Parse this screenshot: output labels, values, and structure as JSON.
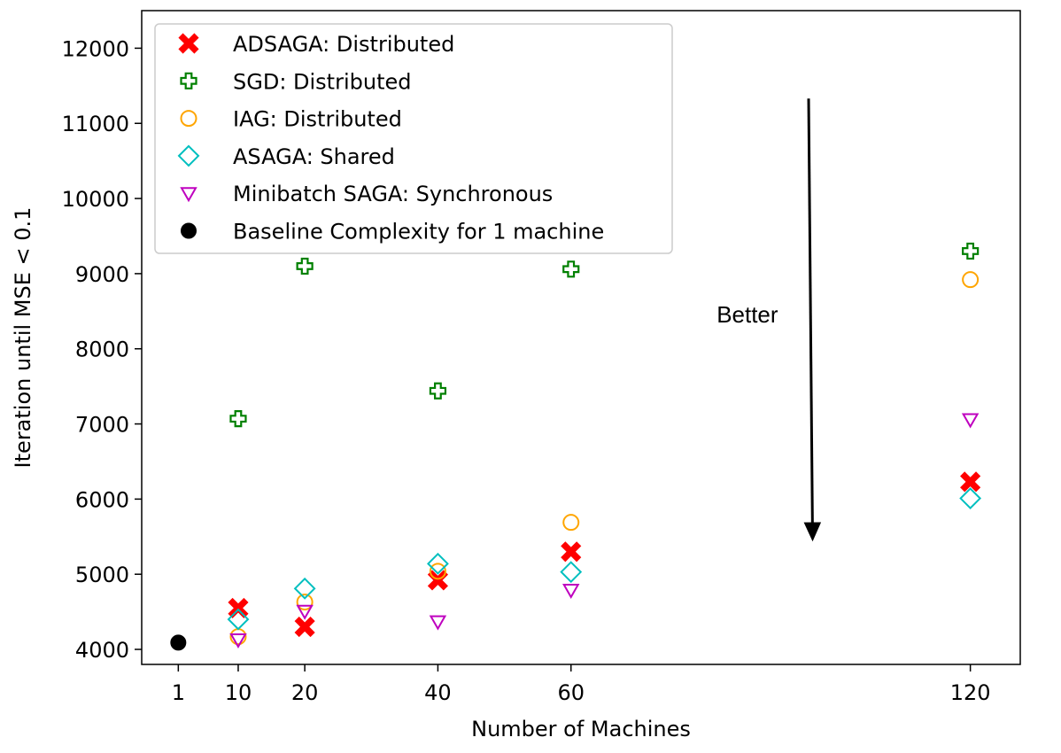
{
  "chart_data": {
    "type": "scatter",
    "title": "",
    "xlabel": "Number of Machines",
    "ylabel": "Iteration until MSE < 0.1",
    "xlim": [
      -4.5,
      127.5
    ],
    "ylim": [
      3800,
      12500
    ],
    "xticks": [
      1,
      10,
      20,
      40,
      60,
      120
    ],
    "yticks": [
      4000,
      5000,
      6000,
      7000,
      8000,
      9000,
      10000,
      11000,
      12000
    ],
    "grid": false,
    "legend_position": "top-left",
    "series": [
      {
        "name": "ADSAGA: Distributed",
        "marker": "filled-x",
        "color": "#ff0000",
        "x": [
          10,
          20,
          40,
          60,
          120
        ],
        "y": [
          4550,
          4300,
          4920,
          5300,
          6230
        ]
      },
      {
        "name": "SGD: Distributed",
        "marker": "plus-outline",
        "color": "#008000",
        "x": [
          10,
          20,
          40,
          60,
          120
        ],
        "y": [
          7070,
          9100,
          7440,
          9060,
          9300
        ]
      },
      {
        "name": "IAG: Distributed",
        "marker": "circle-outline",
        "color": "#ffa500",
        "x": [
          10,
          20,
          40,
          60,
          120
        ],
        "y": [
          4170,
          4630,
          5040,
          5690,
          8920
        ]
      },
      {
        "name": "ASAGA: Shared",
        "marker": "diamond-outline",
        "color": "#00bfbf",
        "x": [
          10,
          20,
          40,
          60,
          120
        ],
        "y": [
          4400,
          4810,
          5140,
          5030,
          6010
        ]
      },
      {
        "name": "Minibatch SAGA: Synchronous",
        "marker": "triangle-down-outline",
        "color": "#bf00bf",
        "x": [
          10,
          20,
          40,
          60,
          120
        ],
        "y": [
          4130,
          4510,
          4370,
          4790,
          7060
        ]
      },
      {
        "name": "Baseline Complexity for 1 machine",
        "marker": "circle-filled",
        "color": "#000000",
        "x": [
          1
        ],
        "y": [
          4090
        ]
      }
    ],
    "annotations": [
      {
        "text": "Better",
        "x": 86.5,
        "y": 8350,
        "arrow_from": [
          95.7,
          11330
        ],
        "arrow_to": [
          96.3,
          5450
        ]
      }
    ]
  }
}
